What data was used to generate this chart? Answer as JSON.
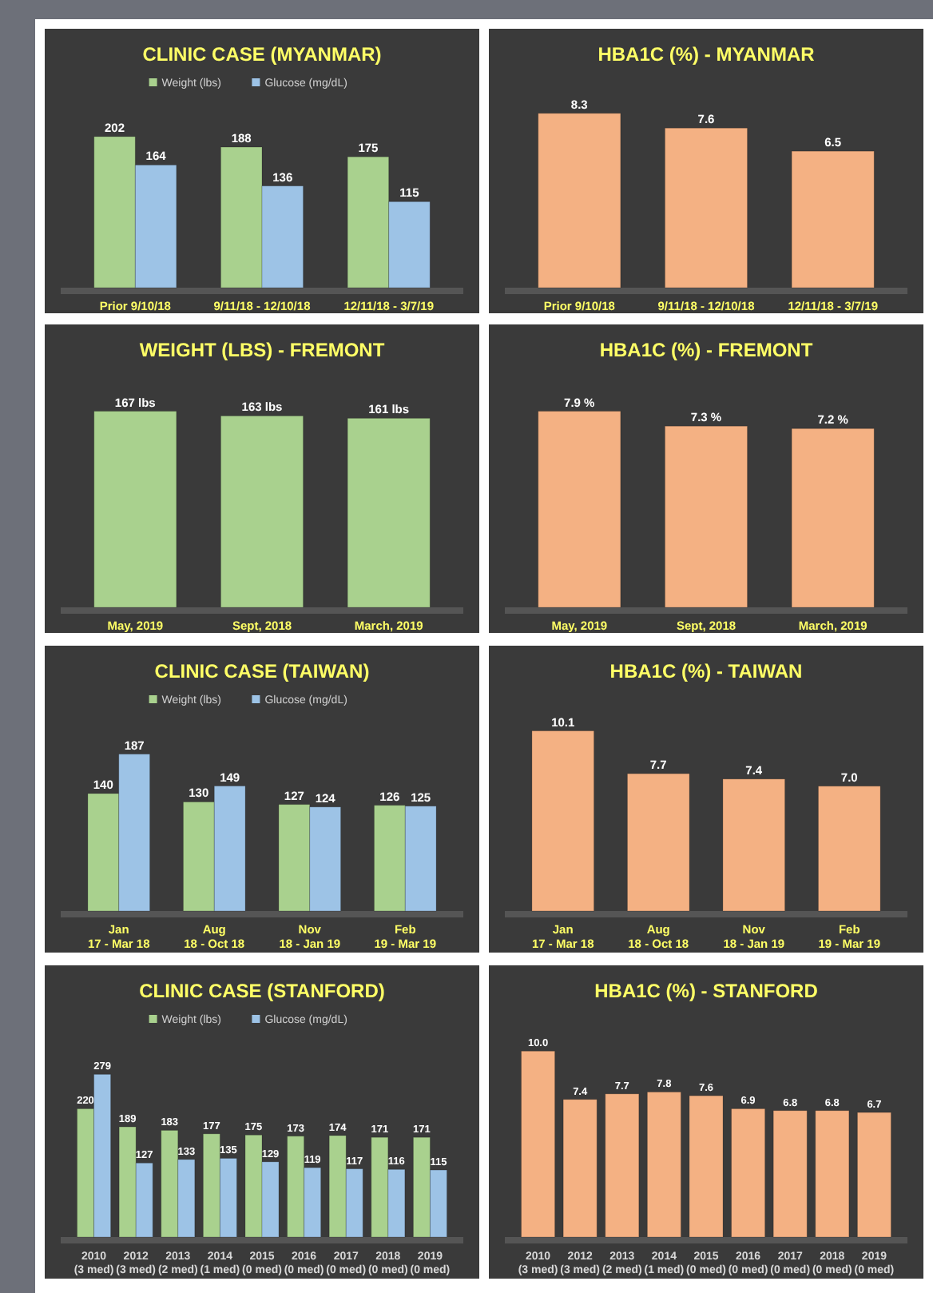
{
  "chart_data": [
    {
      "type": "bar",
      "title": "CLINIC CASE (MYANMAR)",
      "categories": [
        "Prior 9/10/18",
        "9/11/18 - 12/10/18",
        "12/11/18 - 3/7/19"
      ],
      "legend": "top",
      "series": [
        {
          "name": "Weight (lbs)",
          "color": "#a9d18e",
          "values": [
            202,
            188,
            175
          ],
          "value_labels": [
            "202",
            "188",
            "175"
          ]
        },
        {
          "name": "Glucose (mg/dL)",
          "color": "#9dc3e6",
          "values": [
            164,
            136,
            115
          ],
          "value_labels": [
            "164",
            "136",
            "115"
          ]
        }
      ]
    },
    {
      "type": "bar",
      "title": "HBA1C (%) - MYANMAR",
      "categories": [
        "Prior 9/10/18",
        "9/11/18 - 12/10/18",
        "12/11/18 - 3/7/19"
      ],
      "series": [
        {
          "color": "#f4b183",
          "values": [
            8.3,
            7.6,
            6.5
          ],
          "value_labels": [
            "8.3",
            "7.6",
            "6.5"
          ]
        }
      ]
    },
    {
      "type": "bar",
      "title": "WEIGHT (LBS) - FREMONT",
      "categories": [
        "May, 2019",
        "Sept, 2018",
        "March, 2019"
      ],
      "series": [
        {
          "color": "#a9d18e",
          "values": [
            167,
            163,
            161
          ],
          "value_labels": [
            "167 lbs",
            "163 lbs",
            "161 lbs"
          ]
        }
      ]
    },
    {
      "type": "bar",
      "title": "HBA1C (%) - FREMONT",
      "categories": [
        "May, 2019",
        "Sept, 2018",
        "March, 2019"
      ],
      "series": [
        {
          "color": "#f4b183",
          "values": [
            7.9,
            7.3,
            7.2
          ],
          "value_labels": [
            "7.9 %",
            "7.3 %",
            "7.2 %"
          ]
        }
      ]
    },
    {
      "type": "bar",
      "title": "CLINIC CASE (TAIWAN)",
      "categories": [
        "Jan 17 - Mar 18",
        "Aug 18 - Oct 18",
        "Nov 18 - Jan 19",
        "Feb 19 - Mar 19"
      ],
      "legend": "top",
      "series": [
        {
          "name": "Weight (lbs)",
          "color": "#a9d18e",
          "values": [
            140,
            130,
            127,
            126
          ],
          "value_labels": [
            "140",
            "130",
            "127",
            "126"
          ]
        },
        {
          "name": "Glucose (mg/dL)",
          "color": "#9dc3e6",
          "values": [
            187,
            149,
            124,
            125
          ],
          "value_labels": [
            "187",
            "149",
            "124",
            "125"
          ]
        }
      ]
    },
    {
      "type": "bar",
      "title": "HBA1C (%) - TAIWAN",
      "categories": [
        "Jan 17 - Mar 18",
        "Aug 18 - Oct 18",
        "Nov 18 - Jan 19",
        "Feb 19 - Mar 19"
      ],
      "series": [
        {
          "color": "#f4b183",
          "values": [
            10.1,
            7.7,
            7.4,
            7.0
          ],
          "value_labels": [
            "10.1",
            "7.7",
            "7.4",
            "7.0"
          ]
        }
      ]
    },
    {
      "type": "bar",
      "title": "CLINIC CASE (STANFORD)",
      "categories": [
        "2010 (3 med)",
        "2012 (3 med)",
        "2013 (2 med)",
        "2014 (1 med)",
        "2015 (0 med)",
        "2016 (0 med)",
        "2017 (0 med)",
        "2018 (0 med)",
        "2019 (0 med)"
      ],
      "legend": "top",
      "series": [
        {
          "name": "Weight (lbs)",
          "color": "#a9d18e",
          "values": [
            220,
            189,
            183,
            177,
            175,
            173,
            174,
            171,
            171
          ],
          "value_labels": [
            "220",
            "189",
            "183",
            "177",
            "175",
            "173",
            "174",
            "171",
            "171"
          ]
        },
        {
          "name": "Glucose (mg/dL)",
          "color": "#9dc3e6",
          "values": [
            279,
            127,
            133,
            135,
            129,
            119,
            117,
            116,
            115
          ],
          "value_labels": [
            "279",
            "127",
            "133",
            "135",
            "129",
            "119",
            "117",
            "116",
            "115"
          ]
        }
      ]
    },
    {
      "type": "bar",
      "title": "HBA1C (%) - STANFORD",
      "categories": [
        "2010 (3 med)",
        "2012 (3 med)",
        "2013 (2 med)",
        "2014 (1 med)",
        "2015 (0 med)",
        "2016 (0 med)",
        "2017 (0 med)",
        "2018 (0 med)",
        "2019 (0 med)"
      ],
      "series": [
        {
          "color": "#f4b183",
          "values": [
            10.0,
            7.4,
            7.7,
            7.8,
            7.6,
            6.9,
            6.8,
            6.8,
            6.7
          ],
          "value_labels": [
            "10.0",
            "7.4",
            "7.7",
            "7.8",
            "7.6",
            "6.9",
            "6.8",
            "6.8",
            "6.7"
          ]
        }
      ]
    }
  ]
}
